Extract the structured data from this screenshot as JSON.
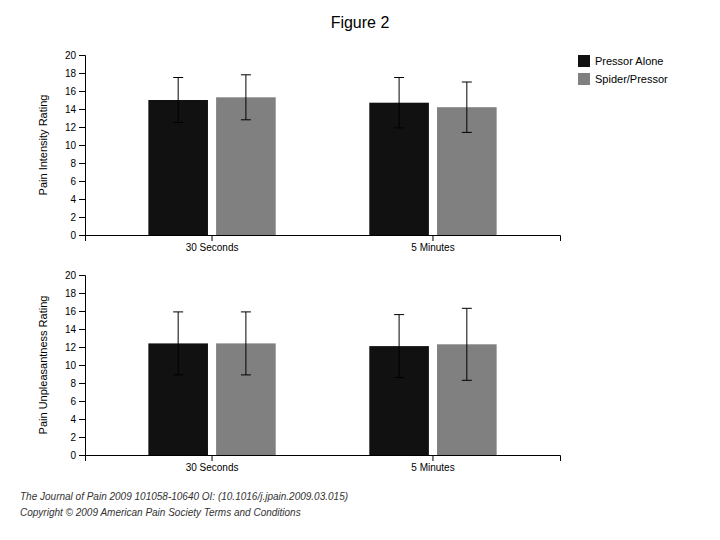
{
  "chart_data": [
    {
      "type": "bar",
      "title": "Figure 2",
      "ylabel": "Pain Intensity Rating",
      "categories": [
        "30 Seconds",
        "5 Minutes"
      ],
      "series": [
        {
          "name": "Pressor Alone",
          "color": "#111111",
          "values": [
            15.0,
            14.7
          ],
          "errors": [
            2.5,
            2.8
          ]
        },
        {
          "name": "Spider/Pressor",
          "color": "#808080",
          "values": [
            15.3,
            14.2
          ],
          "errors": [
            2.5,
            2.8
          ]
        }
      ],
      "ylim": [
        0,
        20
      ],
      "yticks": [
        0,
        2,
        4,
        6,
        8,
        10,
        12,
        14,
        16,
        18,
        20
      ],
      "legend": "upper right"
    },
    {
      "type": "bar",
      "ylabel": "Pain Unpleasantness Rating",
      "categories": [
        "30 Seconds",
        "5 Minutes"
      ],
      "series": [
        {
          "color": "#111111",
          "values": [
            12.4,
            12.1
          ],
          "errors": [
            3.5,
            3.5
          ]
        },
        {
          "color": "#808080",
          "values": [
            12.4,
            12.3
          ],
          "errors": [
            3.5,
            4.0
          ]
        }
      ],
      "ylim": [
        0,
        20
      ],
      "yticks": [
        0,
        2,
        4,
        6,
        8,
        10,
        12,
        14,
        16,
        18,
        20
      ],
      "annotations": [
        "The Journal of Pain 2009 101058-10640 OI: (10.1016/j.jpain.2009.03.015)",
        "Copyright © 2009 American Pain Society Terms and Conditions"
      ]
    }
  ]
}
